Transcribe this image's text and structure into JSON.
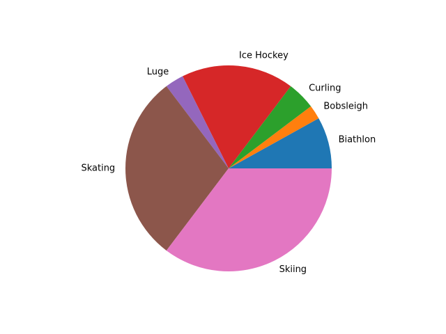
{
  "chart_data": {
    "type": "pie",
    "title": "",
    "labels": [
      "Biathlon",
      "Bobsleigh",
      "Curling",
      "Ice Hockey",
      "Luge",
      "Skating",
      "Skiing"
    ],
    "values": [
      11,
      3,
      6,
      24,
      4,
      40,
      48
    ],
    "colors": [
      "#1f77b4",
      "#ff7f0e",
      "#2ca02c",
      "#d62728",
      "#9467bd",
      "#8c564b",
      "#e377c2"
    ],
    "start_angle_deg": 0,
    "direction": "counterclockwise",
    "legend": "none"
  }
}
